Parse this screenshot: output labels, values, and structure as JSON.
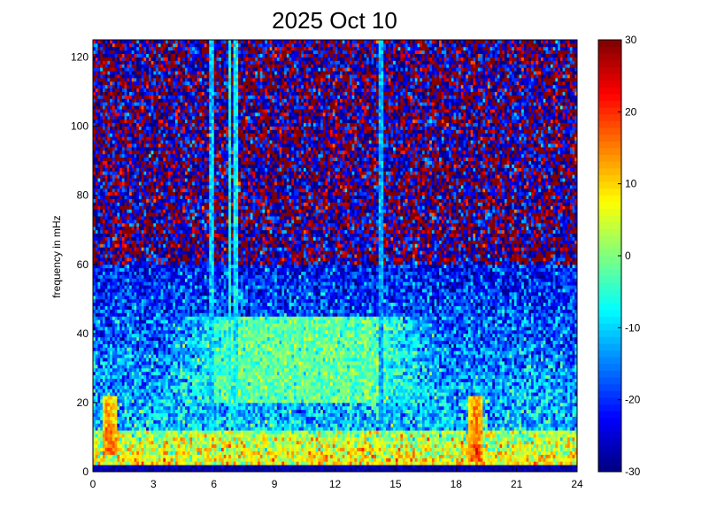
{
  "chart_data": {
    "type": "heatmap",
    "title": "2025 Oct 10",
    "xlabel": "",
    "ylabel": "frequency in mHz",
    "xlim": [
      0,
      24
    ],
    "ylim": [
      0,
      125
    ],
    "x_ticks": [
      0,
      3,
      6,
      9,
      12,
      15,
      18,
      21,
      24
    ],
    "y_ticks": [
      0,
      20,
      40,
      60,
      80,
      100,
      120
    ],
    "colorbar": {
      "colormap": "jet",
      "clim": [
        -30,
        30
      ],
      "ticks": [
        30,
        20,
        10,
        0,
        -10,
        -20,
        -30
      ]
    },
    "grid": false,
    "description_note_free": true,
    "spectrogram": {
      "time_bins": 200,
      "freq_bins": 125,
      "features": [
        {
          "kind": "low_band",
          "freq_range": [
            2,
            12
          ],
          "value": 8
        },
        {
          "kind": "zero_line",
          "freq_range": [
            0,
            2
          ],
          "value": -28
        },
        {
          "kind": "noise_floor_low",
          "freq_range": [
            12,
            60
          ],
          "value": -10
        },
        {
          "kind": "noise_floor_high",
          "freq_range": [
            60,
            125
          ],
          "value": 25
        },
        {
          "kind": "hump",
          "time_range": [
            6,
            15
          ],
          "freq_range": [
            20,
            45
          ],
          "value": -2
        },
        {
          "kind": "vertical_line",
          "time": 5.9,
          "value": -10
        },
        {
          "kind": "vertical_line",
          "time": 6.8,
          "value": -6
        },
        {
          "kind": "vertical_line",
          "time": 7.1,
          "value": -8
        },
        {
          "kind": "vertical_line",
          "time": 14.3,
          "value": -12
        },
        {
          "kind": "burst",
          "time": 0.8,
          "freq_range": [
            5,
            22
          ],
          "value": 18
        },
        {
          "kind": "burst",
          "time": 19.0,
          "freq_range": [
            3,
            22
          ],
          "value": 20
        }
      ]
    }
  }
}
